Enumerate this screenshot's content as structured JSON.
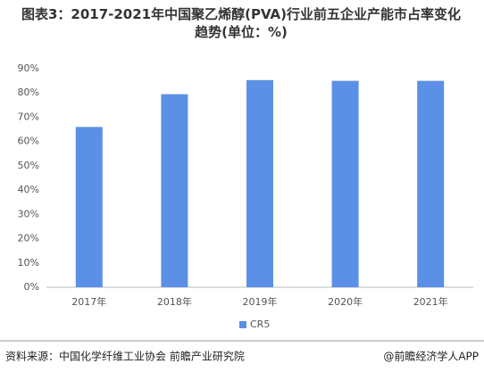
{
  "chart_data": {
    "type": "bar",
    "title": "图表3：2017-2021年中国聚乙烯醇(PVA)行业前五企业产能市占率变化趋势(单位：%)",
    "categories": [
      "2017年",
      "2018年",
      "2019年",
      "2020年",
      "2021年"
    ],
    "series": [
      {
        "name": "CR5",
        "color": "#5b90e6",
        "values": [
          66,
          79.5,
          85.3,
          85,
          85
        ]
      }
    ],
    "ylim": [
      0,
      90
    ],
    "yticks": [
      {
        "value": 0,
        "label": "0%"
      },
      {
        "value": 10,
        "label": "10%"
      },
      {
        "value": 20,
        "label": "20%"
      },
      {
        "value": 30,
        "label": "30%"
      },
      {
        "value": 40,
        "label": "40%"
      },
      {
        "value": 50,
        "label": "50%"
      },
      {
        "value": 60,
        "label": "60%"
      },
      {
        "value": 70,
        "label": "70%"
      },
      {
        "value": 80,
        "label": "80%"
      },
      {
        "value": 90,
        "label": "90%"
      }
    ],
    "grid": false,
    "legend": "bottom",
    "source": "资料来源：中国化学纤维工业协会 前瞻产业研究院",
    "credit": "@前瞻经济学人APP"
  }
}
